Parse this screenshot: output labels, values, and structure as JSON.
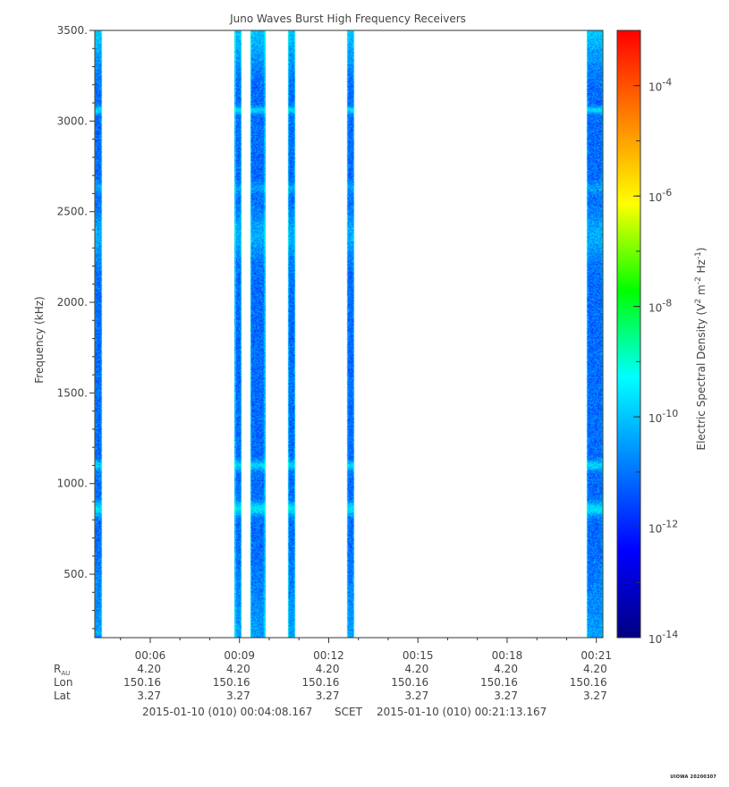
{
  "chart_data": {
    "type": "heatmap",
    "title": "Juno Waves Burst High Frequency Receivers",
    "ylabel": "Frequency (kHz)",
    "ylim": [
      150,
      3500
    ],
    "yticks": [
      {
        "value": 500,
        "label": "500."
      },
      {
        "value": 1000,
        "label": "1000."
      },
      {
        "value": 1500,
        "label": "1500."
      },
      {
        "value": 2000,
        "label": "2000."
      },
      {
        "value": 2500,
        "label": "2500."
      },
      {
        "value": 3000,
        "label": "3000."
      },
      {
        "value": 3500,
        "label": "3500."
      }
    ],
    "xlim": [
      "00:04:08.167",
      "00:21:13.167"
    ],
    "xticks": [
      "00:06",
      "00:09",
      "00:12",
      "00:15",
      "00:18",
      "00:21"
    ],
    "xtick_seconds": [
      360,
      540,
      720,
      900,
      1080,
      1260
    ],
    "xlim_seconds": [
      248.167,
      1273.167
    ],
    "ephemeris_rows": [
      {
        "label": "R",
        "label_sub": "AU",
        "values": [
          "4.20",
          "4.20",
          "4.20",
          "4.20",
          "4.20",
          "4.20"
        ]
      },
      {
        "label": "Lon",
        "values": [
          "150.16",
          "150.16",
          "150.16",
          "150.16",
          "150.16",
          "150.16"
        ]
      },
      {
        "label": "Lat",
        "values": [
          "3.27",
          "3.27",
          "3.27",
          "3.27",
          "3.27",
          "3.27"
        ]
      }
    ],
    "data_intervals_seconds": [
      [
        248.167,
        263
      ],
      [
        530,
        545
      ],
      [
        562,
        592
      ],
      [
        638,
        653
      ],
      [
        757,
        772
      ]
    ],
    "emission_lines_khz": [
      {
        "freq": 3060,
        "width": 18,
        "strength": 0.85
      },
      {
        "freq": 2630,
        "width": 30,
        "strength": 0.35
      },
      {
        "freq": 2370,
        "width": 120,
        "strength": 0.45
      },
      {
        "freq": 1100,
        "width": 25,
        "strength": 0.8
      },
      {
        "freq": 860,
        "width": 35,
        "strength": 0.9
      }
    ],
    "colorbar": {
      "label_prefix": "Electric Spectral Density (V",
      "label_mid1": "2",
      "label_mid2": " m",
      "label_mid3": "-2",
      "label_mid4": " Hz",
      "label_mid5": "-1",
      "label_suffix": ")",
      "log_min": -14,
      "log_max": -3,
      "ticks": [
        {
          "exp": -4,
          "base": "10",
          "sup": "-4"
        },
        {
          "exp": -6,
          "base": "10",
          "sup": "-6"
        },
        {
          "exp": -8,
          "base": "10",
          "sup": "-8"
        },
        {
          "exp": -10,
          "base": "10",
          "sup": "-10"
        },
        {
          "exp": -12,
          "base": "10",
          "sup": "-12"
        },
        {
          "exp": -14,
          "base": "10",
          "sup": "-14"
        }
      ],
      "colors": [
        "#000080",
        "#0000ff",
        "#0080ff",
        "#00ffff",
        "#00ff00",
        "#ffff00",
        "#ff8000",
        "#ff0000"
      ]
    }
  },
  "footer": {
    "start": "2015-01-10 (010) 00:04:08.167",
    "scet": "SCET",
    "end": "2015-01-10 (010) 00:21:13.167"
  },
  "watermark": "UIOWA 20200307"
}
